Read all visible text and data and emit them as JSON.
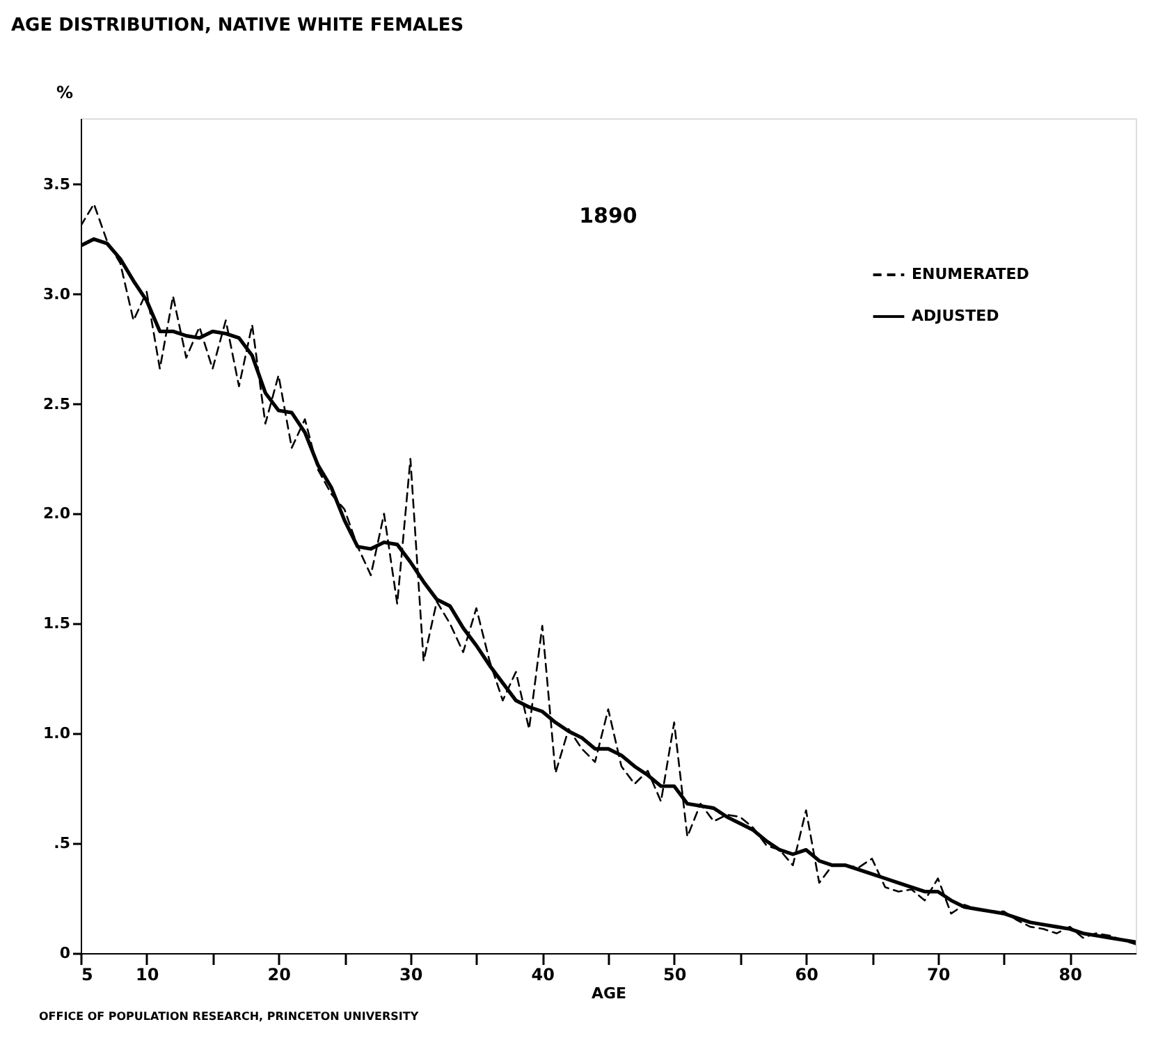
{
  "chart_data": {
    "type": "line",
    "title": "AGE DISTRIBUTION, NATIVE WHITE FEMALES",
    "xlabel": "AGE",
    "ylabel": "%",
    "x": [
      5,
      6,
      7,
      8,
      9,
      10,
      11,
      12,
      13,
      14,
      15,
      16,
      17,
      18,
      19,
      20,
      21,
      22,
      23,
      24,
      25,
      26,
      27,
      28,
      29,
      30,
      31,
      32,
      33,
      34,
      35,
      36,
      37,
      38,
      39,
      40,
      41,
      42,
      43,
      44,
      45,
      46,
      47,
      48,
      49,
      50,
      51,
      52,
      53,
      54,
      55,
      56,
      57,
      58,
      59,
      60,
      61,
      62,
      63,
      64,
      65,
      66,
      67,
      68,
      69,
      70,
      71,
      72,
      73,
      74,
      75,
      76,
      77,
      78,
      79,
      80,
      81,
      82,
      83,
      84,
      85
    ],
    "series": [
      {
        "name": "ENUMERATED",
        "color": "#000000",
        "line_style": "dashed",
        "values": [
          3.31,
          3.41,
          3.24,
          3.14,
          2.88,
          3.01,
          2.66,
          2.99,
          2.71,
          2.85,
          2.66,
          2.88,
          2.58,
          2.86,
          2.41,
          2.63,
          2.3,
          2.43,
          2.2,
          2.09,
          2.02,
          1.85,
          1.72,
          2.0,
          1.59,
          2.25,
          1.33,
          1.6,
          1.5,
          1.37,
          1.57,
          1.33,
          1.15,
          1.28,
          1.02,
          1.49,
          0.82,
          1.02,
          0.93,
          0.87,
          1.11,
          0.85,
          0.77,
          0.83,
          0.69,
          1.05,
          0.53,
          0.68,
          0.6,
          0.63,
          0.62,
          0.57,
          0.49,
          0.47,
          0.4,
          0.65,
          0.32,
          0.4,
          0.4,
          0.39,
          0.43,
          0.3,
          0.28,
          0.29,
          0.24,
          0.34,
          0.18,
          0.22,
          0.2,
          0.19,
          0.19,
          0.15,
          0.12,
          0.11,
          0.09,
          0.12,
          0.07,
          0.09,
          0.08,
          0.06,
          0.04
        ]
      },
      {
        "name": "ADJUSTED",
        "color": "#000000",
        "line_style": "solid",
        "values": [
          3.22,
          3.25,
          3.23,
          3.16,
          3.06,
          2.97,
          2.83,
          2.83,
          2.81,
          2.8,
          2.83,
          2.82,
          2.8,
          2.72,
          2.55,
          2.47,
          2.46,
          2.37,
          2.22,
          2.12,
          1.97,
          1.85,
          1.84,
          1.87,
          1.86,
          1.78,
          1.69,
          1.61,
          1.58,
          1.48,
          1.4,
          1.31,
          1.23,
          1.15,
          1.12,
          1.1,
          1.05,
          1.01,
          0.98,
          0.93,
          0.93,
          0.9,
          0.85,
          0.81,
          0.76,
          0.76,
          0.68,
          0.67,
          0.66,
          0.62,
          0.59,
          0.56,
          0.51,
          0.47,
          0.45,
          0.47,
          0.42,
          0.4,
          0.4,
          0.38,
          0.36,
          0.34,
          0.32,
          0.3,
          0.28,
          0.28,
          0.24,
          0.21,
          0.2,
          0.19,
          0.18,
          0.16,
          0.14,
          0.13,
          0.12,
          0.11,
          0.09,
          0.08,
          0.07,
          0.06,
          0.05
        ]
      }
    ],
    "xlim": [
      5,
      85
    ],
    "xticks": [
      5,
      10,
      {
        "value": 15,
        "label": null
      },
      20,
      {
        "value": 25,
        "label": null
      },
      30,
      {
        "value": 35,
        "label": null
      },
      40,
      {
        "value": 45,
        "label": null
      },
      50,
      {
        "value": 55,
        "label": null
      },
      60,
      {
        "value": 65,
        "label": null
      },
      70,
      {
        "value": 75,
        "label": null
      },
      80
    ],
    "ylim": [
      0,
      3.8
    ],
    "yticks": [
      0,
      {
        "value": 0.5,
        "label": ".5"
      },
      {
        "value": 1,
        "label": "1.0"
      },
      1.5,
      {
        "value": 2,
        "label": "2.0"
      },
      2.5,
      {
        "value": 3,
        "label": "3.0"
      },
      3.5
    ],
    "grid": false,
    "legend": "top right",
    "annotations": [
      "1890",
      "OFFICE OF POPULATION RESEARCH, PRINCETON UNIVERSITY"
    ]
  }
}
